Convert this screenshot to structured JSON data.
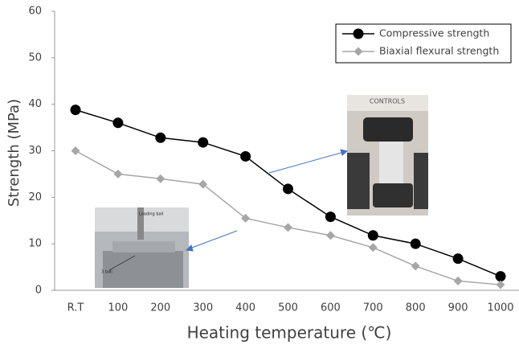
{
  "chart_data": {
    "type": "line",
    "x_label": "Heating temperature (℃)",
    "y_label": "Strength (MPa)",
    "categories": [
      "R.T",
      "100",
      "200",
      "300",
      "400",
      "500",
      "600",
      "700",
      "800",
      "900",
      "1000"
    ],
    "series": [
      {
        "name": "Compressive strength",
        "color": "#000000",
        "marker": "circle",
        "values": [
          38.8,
          36,
          32.8,
          31.8,
          28.8,
          21.8,
          15.8,
          11.8,
          10,
          6.8,
          3
        ]
      },
      {
        "name": "Biaxial flexural strength",
        "color": "#a6a6a6",
        "marker": "diamond",
        "values": [
          30,
          25,
          24,
          22.8,
          15.5,
          13.5,
          11.8,
          9.2,
          5.2,
          2,
          1.2
        ]
      }
    ],
    "ylim": [
      0,
      60
    ],
    "yticks": [
      0,
      10,
      20,
      30,
      40,
      50,
      60
    ],
    "grid": false,
    "legend": "upper right",
    "annotations": [
      "CONTROLS",
      "Loading ball",
      "3 ball"
    ]
  }
}
